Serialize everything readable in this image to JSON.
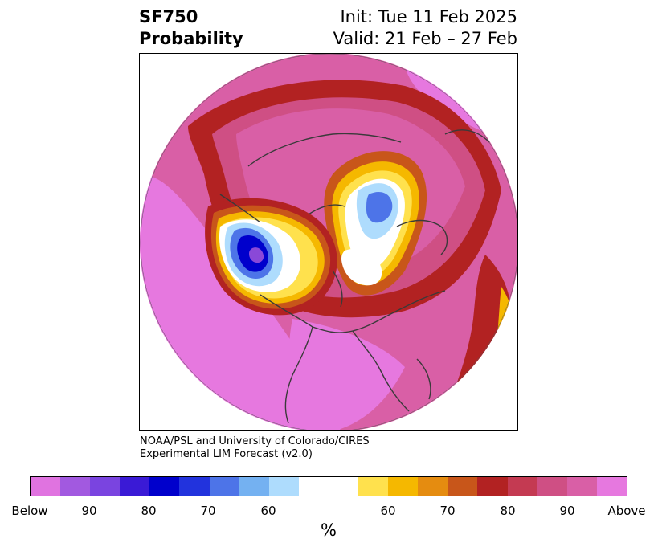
{
  "header": {
    "title_line1": "SF750",
    "title_line2": "Probability",
    "init_line": "Init: Tue 11 Feb 2025",
    "valid_line": "Valid: 21 Feb – 27 Feb"
  },
  "credit": {
    "line1": "NOAA/PSL and University of Colorado/CIRES",
    "line2": "Experimental LIM Forecast (v2.0)"
  },
  "colorbar": {
    "unit": "%",
    "colors": [
      "#e073e0",
      "#a259e0",
      "#7a44e0",
      "#3a1ad6",
      "#0000cc",
      "#2233dd",
      "#4d74e8",
      "#74b1f1",
      "#aedcfd",
      "#ffffff",
      "#ffe14d",
      "#f5b800",
      "#e58c10",
      "#c8561a",
      "#b22222",
      "#c43a52",
      "#cf4f84",
      "#d95fa6",
      "#e678df"
    ],
    "tick_labels": [
      "Below",
      "90",
      "80",
      "70",
      "60",
      "60",
      "70",
      "80",
      "90",
      "Above"
    ]
  },
  "map": {
    "colors": {
      "ocean_base": "#d95fa6",
      "warm_pink": "#e678df",
      "magenta": "#cf4f84",
      "red": "#b22222",
      "orange": "#c8561a",
      "gold": "#f5b800",
      "yellow": "#ffe14d",
      "white": "#ffffff",
      "light_blue": "#aedcfd",
      "blue": "#4d74e8",
      "deep_blue": "#0000cc",
      "coast": "#3a3a3a"
    }
  }
}
